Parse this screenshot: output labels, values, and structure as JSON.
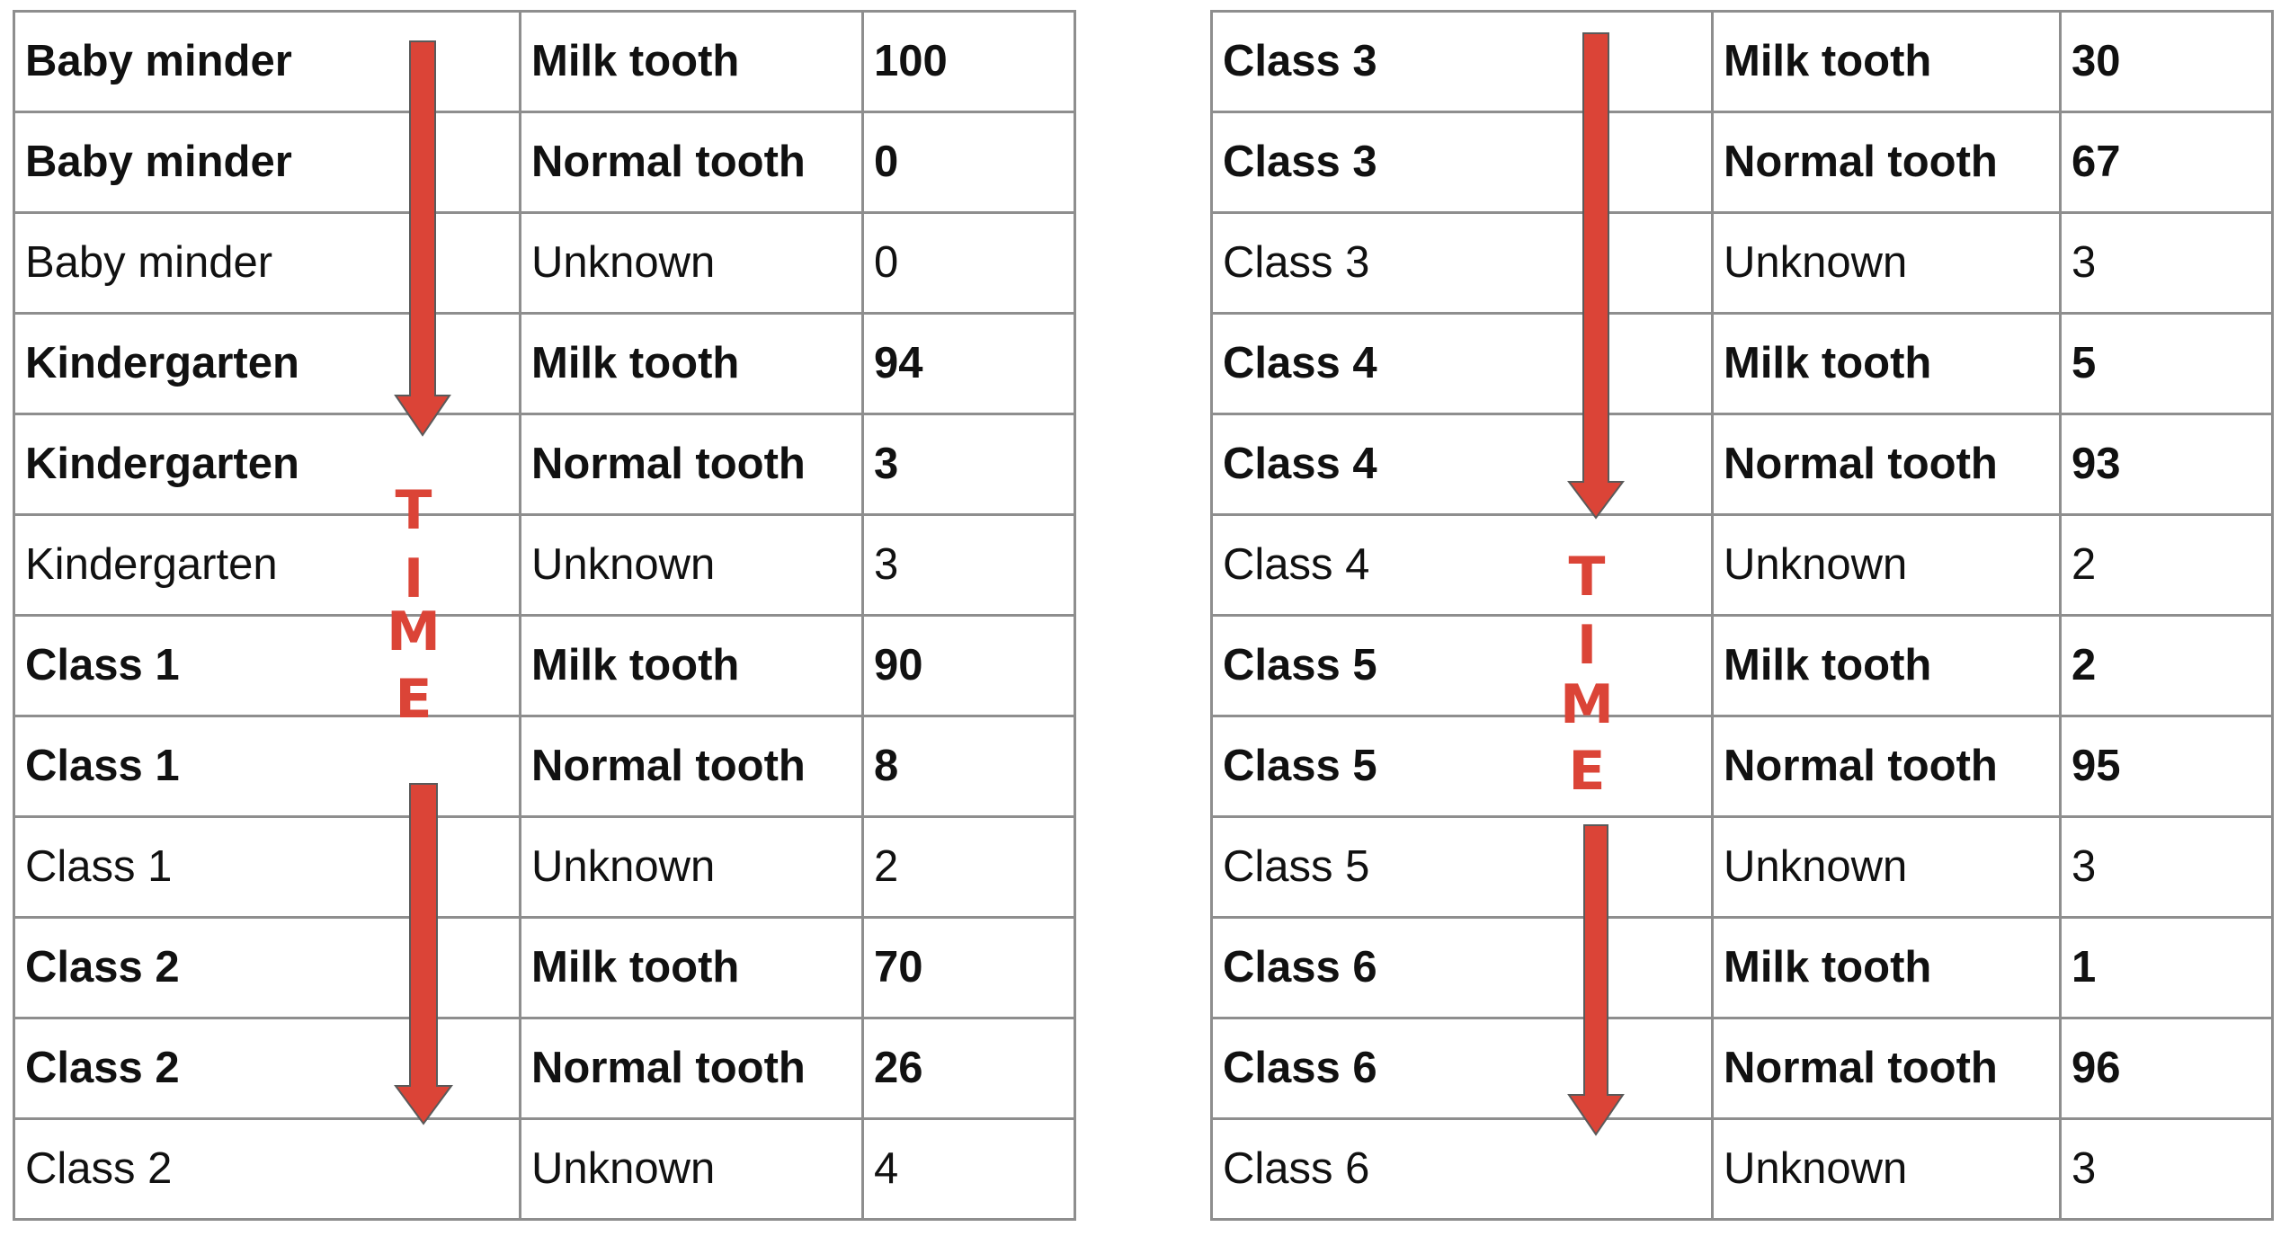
{
  "accent_color": "#db4437",
  "time_label": "TIME",
  "left_table": {
    "rows": [
      {
        "stage": "Baby minder",
        "tooth": "Milk tooth",
        "value": "100",
        "bold": true
      },
      {
        "stage": "Baby minder",
        "tooth": "Normal tooth",
        "value": "0",
        "bold": true
      },
      {
        "stage": "Baby minder",
        "tooth": "Unknown",
        "value": "0",
        "bold": false
      },
      {
        "stage": "Kindergarten",
        "tooth": "Milk tooth",
        "value": "94",
        "bold": true
      },
      {
        "stage": "Kindergarten",
        "tooth": "Normal tooth",
        "value": "3",
        "bold": true
      },
      {
        "stage": "Kindergarten",
        "tooth": "Unknown",
        "value": "3",
        "bold": false
      },
      {
        "stage": "Class 1",
        "tooth": "Milk tooth",
        "value": "90",
        "bold": true
      },
      {
        "stage": "Class 1",
        "tooth": "Normal tooth",
        "value": "8",
        "bold": true
      },
      {
        "stage": "Class 1",
        "tooth": "Unknown",
        "value": "2",
        "bold": false
      },
      {
        "stage": "Class 2",
        "tooth": "Milk tooth",
        "value": "70",
        "bold": true
      },
      {
        "stage": "Class 2",
        "tooth": "Normal tooth",
        "value": "26",
        "bold": true
      },
      {
        "stage": "Class 2",
        "tooth": "Unknown",
        "value": "4",
        "bold": false
      }
    ]
  },
  "right_table": {
    "rows": [
      {
        "stage": "Class 3",
        "tooth": "Milk tooth",
        "value": "30",
        "bold": true
      },
      {
        "stage": "Class 3",
        "tooth": "Normal tooth",
        "value": "67",
        "bold": true
      },
      {
        "stage": "Class 3",
        "tooth": "Unknown",
        "value": "3",
        "bold": false
      },
      {
        "stage": "Class 4",
        "tooth": "Milk tooth",
        "value": "5",
        "bold": true
      },
      {
        "stage": "Class 4",
        "tooth": "Normal tooth",
        "value": "93",
        "bold": true
      },
      {
        "stage": "Class 4",
        "tooth": "Unknown",
        "value": "2",
        "bold": false
      },
      {
        "stage": "Class 5",
        "tooth": "Milk tooth",
        "value": "2",
        "bold": true
      },
      {
        "stage": "Class 5",
        "tooth": "Normal tooth",
        "value": "95",
        "bold": true
      },
      {
        "stage": "Class 5",
        "tooth": "Unknown",
        "value": "3",
        "bold": false
      },
      {
        "stage": "Class 6",
        "tooth": "Milk tooth",
        "value": "1",
        "bold": true
      },
      {
        "stage": "Class 6",
        "tooth": "Normal tooth",
        "value": "96",
        "bold": true
      },
      {
        "stage": "Class 6",
        "tooth": "Unknown",
        "value": "3",
        "bold": false
      }
    ]
  }
}
